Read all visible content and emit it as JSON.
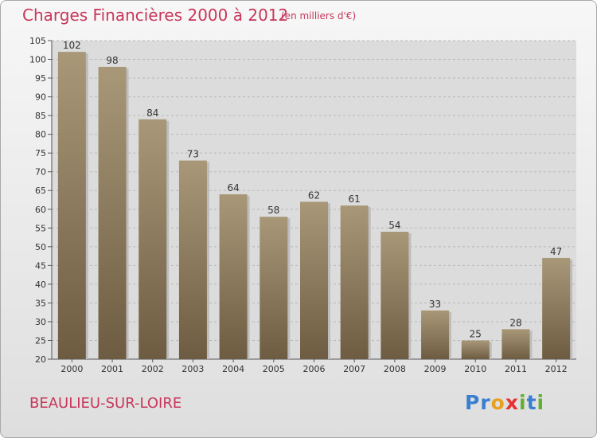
{
  "chart_data": {
    "type": "bar",
    "title": "Charges Financières 2000 à 2012",
    "subtitle": "(en milliers d'€)",
    "categories": [
      "2000",
      "2001",
      "2002",
      "2003",
      "2004",
      "2005",
      "2006",
      "2007",
      "2008",
      "2009",
      "2010",
      "2011",
      "2012"
    ],
    "values": [
      102,
      98,
      84,
      73,
      64,
      58,
      62,
      61,
      54,
      33,
      25,
      28,
      47
    ],
    "ylim": [
      20,
      105
    ],
    "yticks": [
      20,
      25,
      30,
      35,
      40,
      45,
      50,
      55,
      60,
      65,
      70,
      75,
      80,
      85,
      90,
      95,
      100,
      105
    ],
    "grid": true,
    "bar_color_top": "#a89878",
    "bar_color_bottom": "#6e5c42"
  },
  "commune": "BEAULIEU-SUR-LOIRE",
  "logo": {
    "letters": [
      "P",
      "r",
      "o",
      "x",
      "i",
      "t",
      "i"
    ],
    "colors": [
      "#3a7fd0",
      "#3a7fd0",
      "#e8a020",
      "#e83030",
      "#60b030",
      "#3a7fd0",
      "#60b030"
    ]
  },
  "colors": {
    "accent": "#c8365a"
  }
}
